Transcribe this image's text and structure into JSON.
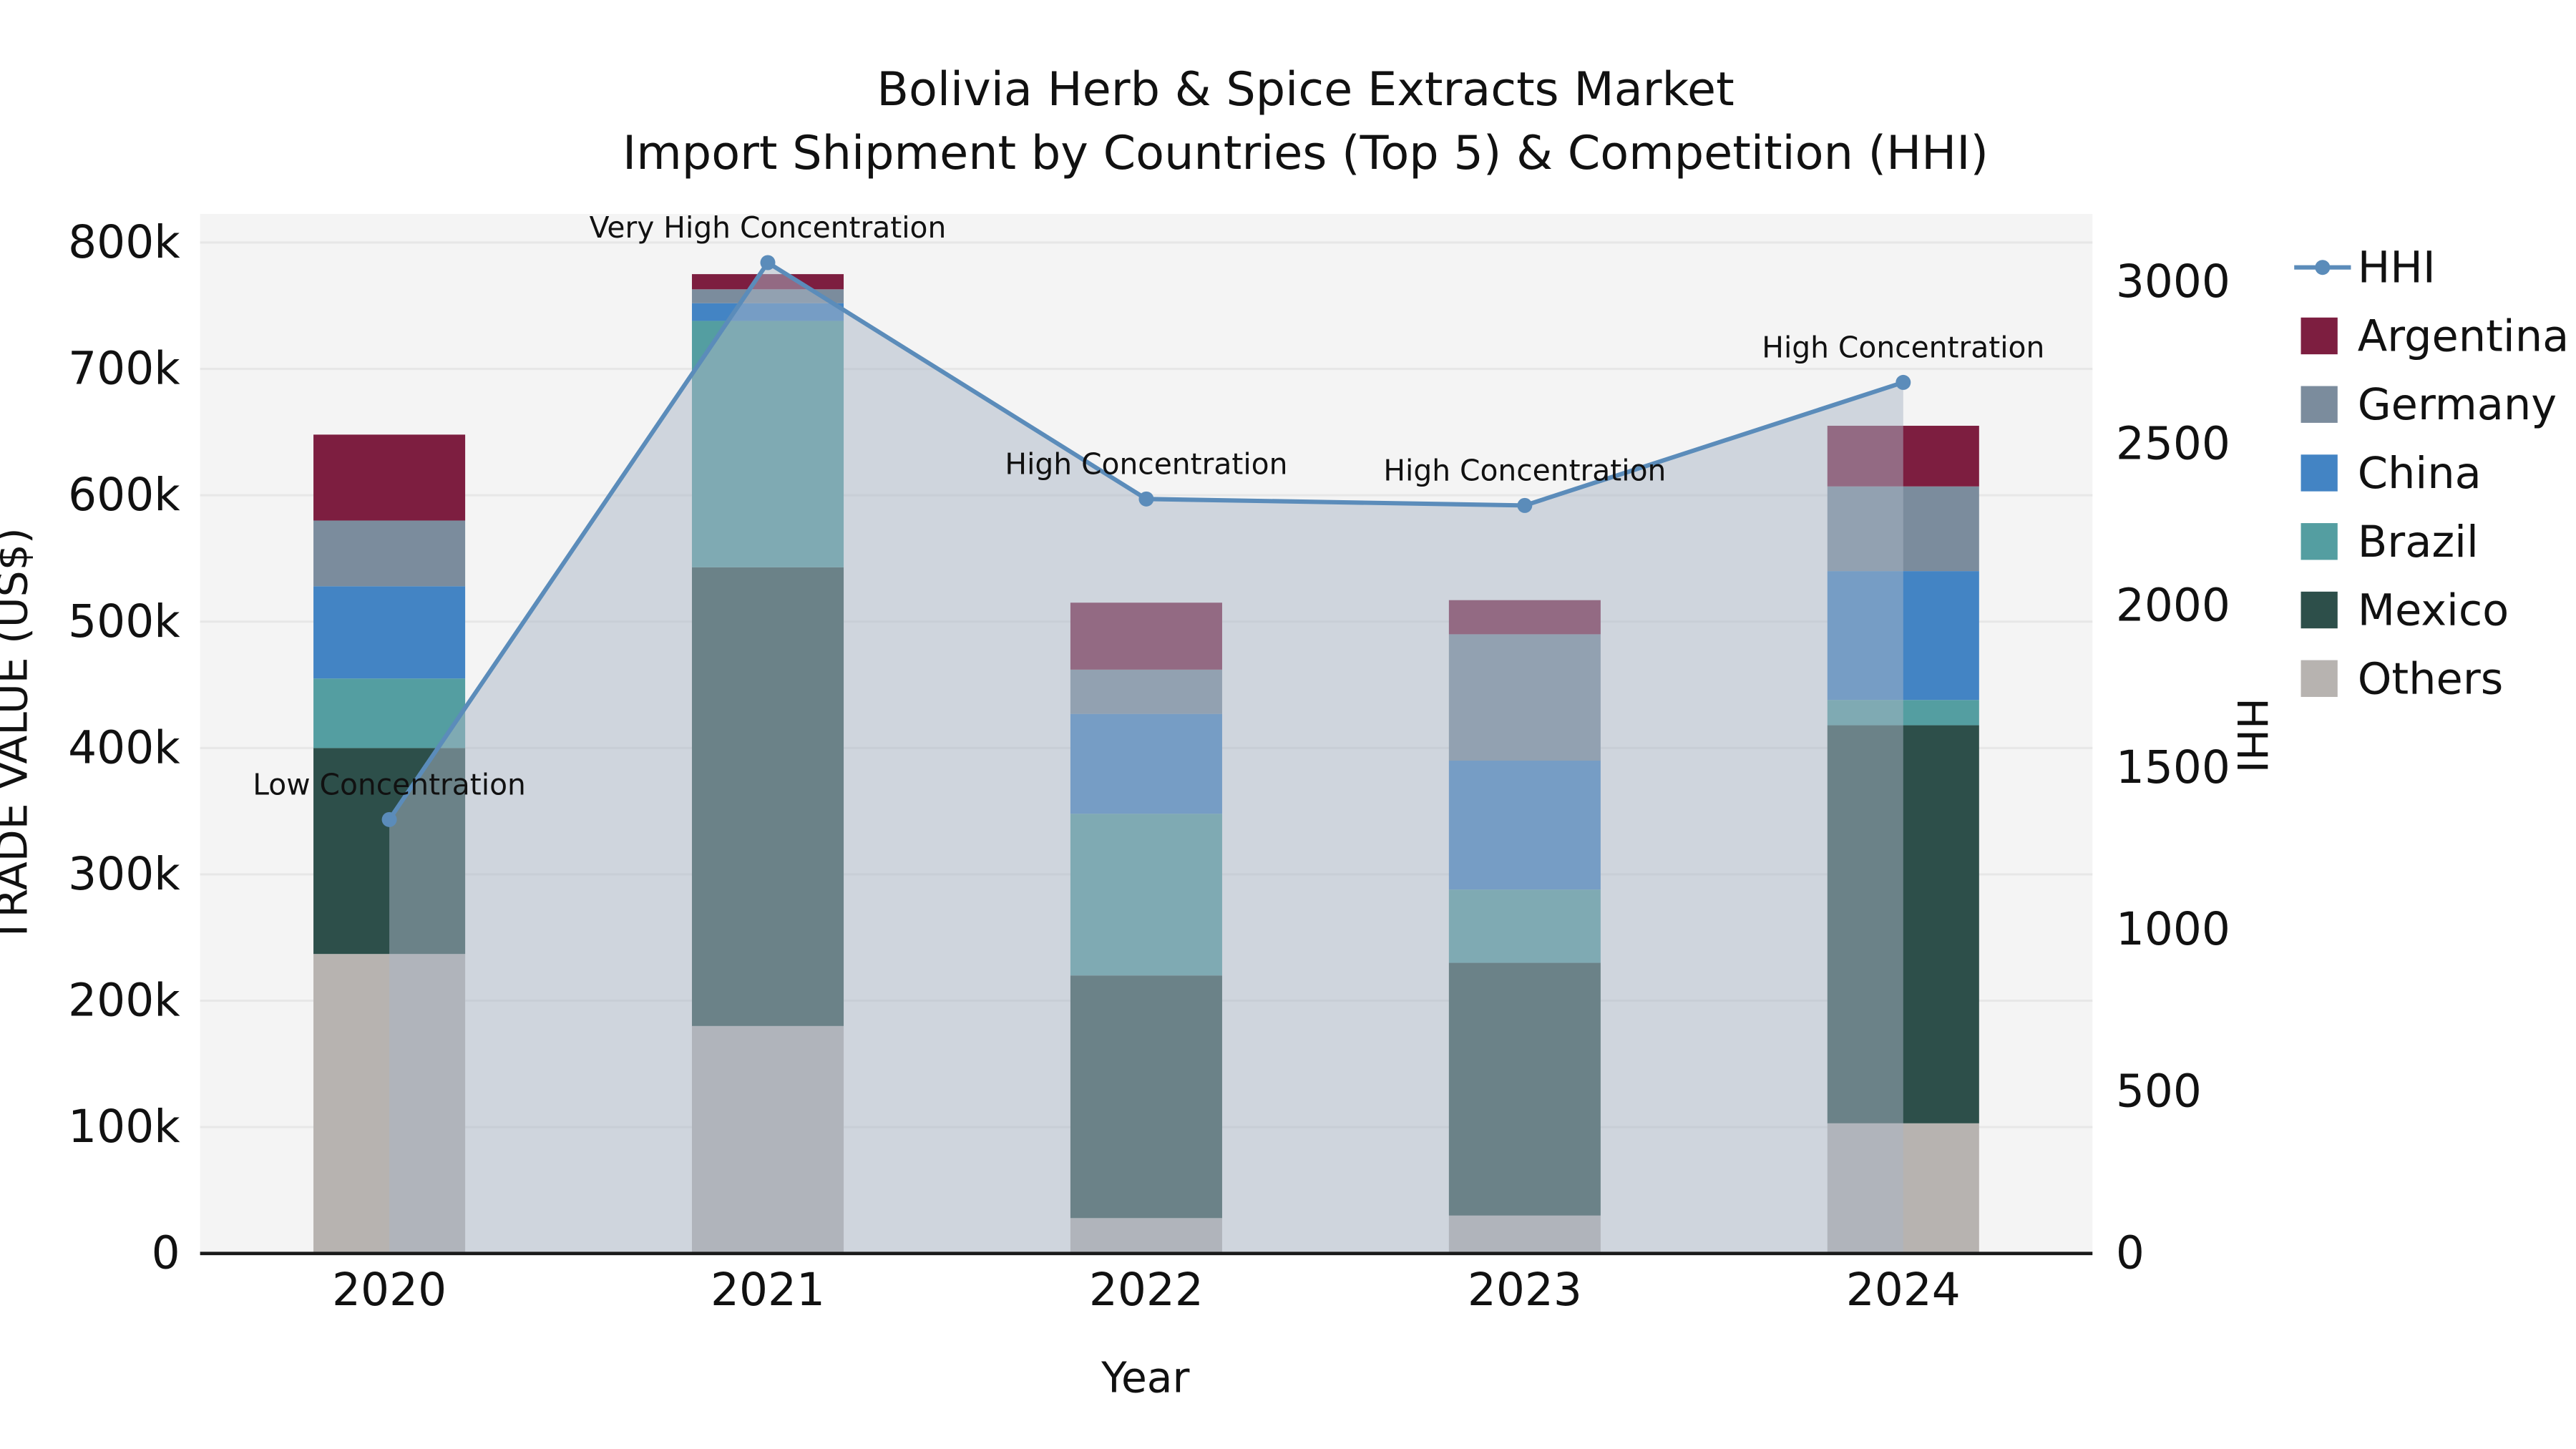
{
  "title": {
    "line1": "Bolivia Herb & Spice Extracts Market",
    "line2": "Import Shipment by Countries (Top 5) & Competition (HHI)"
  },
  "chart_data": {
    "type": "combo",
    "subtype": "stacked-bar with overlaid line on secondary axis and shaded area under line",
    "categories": [
      "2020",
      "2021",
      "2022",
      "2023",
      "2024"
    ],
    "xlabel": "Year",
    "ylabel_left": "TRADE VALUE (US$)",
    "ylabel_right": "HHI",
    "ylim_left": [
      0,
      820000
    ],
    "ylim_right": [
      0,
      3200
    ],
    "grid": "horizontal",
    "legend_position": "right",
    "plot_background": "#f4f4f4",
    "gridline_color": "#e7e7e7",
    "yticks_left": [
      {
        "value": 0,
        "label": "0"
      },
      {
        "value": 100000,
        "label": "100k"
      },
      {
        "value": 200000,
        "label": "200k"
      },
      {
        "value": 300000,
        "label": "300k"
      },
      {
        "value": 400000,
        "label": "400k"
      },
      {
        "value": 500000,
        "label": "500k"
      },
      {
        "value": 600000,
        "label": "600k"
      },
      {
        "value": 700000,
        "label": "700k"
      },
      {
        "value": 800000,
        "label": "800k"
      }
    ],
    "yticks_right": [
      {
        "value": 0,
        "label": "0"
      },
      {
        "value": 500,
        "label": "500"
      },
      {
        "value": 1000,
        "label": "1000"
      },
      {
        "value": 1500,
        "label": "1500"
      },
      {
        "value": 2000,
        "label": "2000"
      },
      {
        "value": 2500,
        "label": "2500"
      },
      {
        "value": 3000,
        "label": "3000"
      }
    ],
    "bar_series": [
      {
        "name": "Others",
        "color": "#b7b3b0",
        "values": [
          237000,
          180000,
          28000,
          30000,
          103000
        ]
      },
      {
        "name": "Mexico",
        "color": "#2d4f4a",
        "values": [
          163000,
          363000,
          192000,
          200000,
          315000
        ]
      },
      {
        "name": "Brazil",
        "color": "#549ea1",
        "values": [
          55000,
          195000,
          128000,
          58000,
          20000
        ]
      },
      {
        "name": "China",
        "color": "#4384c4",
        "values": [
          73000,
          14000,
          79000,
          102000,
          102000
        ]
      },
      {
        "name": "Germany",
        "color": "#7b8c9d",
        "values": [
          52000,
          11000,
          35000,
          100000,
          67000
        ]
      },
      {
        "name": "Argentina",
        "color": "#7d1e40",
        "values": [
          68000,
          12000,
          53000,
          27000,
          48000
        ]
      }
    ],
    "bar_totals": [
      648000,
      775000,
      515000,
      517000,
      655000
    ],
    "line_series": {
      "name": "HHI",
      "color": "#5b8cba",
      "area_fill": "#aab6c6",
      "area_opacity": 0.5,
      "values": [
        1340,
        3060,
        2330,
        2310,
        2690
      ],
      "annotations": [
        "Low Concentration",
        "Very High Concentration",
        "High Concentration",
        "High Concentration",
        "High Concentration"
      ]
    }
  }
}
